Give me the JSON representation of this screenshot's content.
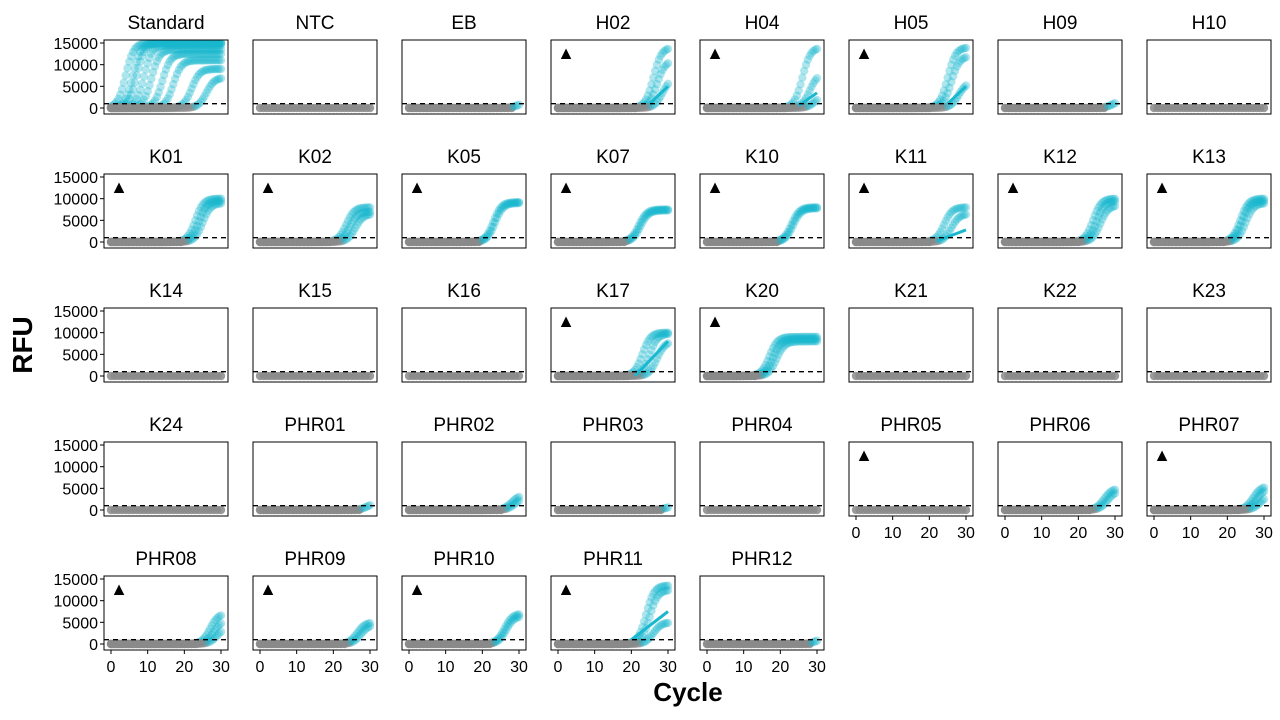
{
  "chart_data": {
    "type": "scatter",
    "xlabel": "Cycle",
    "ylabel": "RFU",
    "xlim": [
      0,
      30
    ],
    "ylim": [
      0,
      15000
    ],
    "x_ticks": [
      "0",
      "10",
      "20",
      "30"
    ],
    "y_ticks": [
      "0",
      "5000",
      "10000",
      "15000"
    ],
    "threshold": 1000,
    "marker_symbol": "▲",
    "grid": false,
    "legend": "none",
    "colors": {
      "amplified": "#1ab8cf",
      "background": "#8a8a8a",
      "threshold": "#000000"
    },
    "panels": [
      {
        "name": "Standard",
        "marked": false,
        "curves": [
          {
            "ct": 4,
            "max": 15000
          },
          {
            "ct": 6,
            "max": 15000
          },
          {
            "ct": 7,
            "max": 15000
          },
          {
            "ct": 9,
            "max": 14500
          },
          {
            "ct": 11,
            "max": 13500
          },
          {
            "ct": 14,
            "max": 12500
          },
          {
            "ct": 17,
            "max": 11000
          },
          {
            "ct": 22,
            "max": 9000
          },
          {
            "ct": 26,
            "max": 7000
          }
        ],
        "fit": null
      },
      {
        "name": "NTC",
        "marked": false,
        "curves": [],
        "fit": null
      },
      {
        "name": "EB",
        "marked": false,
        "curves": [
          {
            "ct": 30,
            "max": 1500
          }
        ],
        "fit": null
      },
      {
        "name": "H02",
        "marked": true,
        "curves": [
          {
            "ct": 26,
            "max": 14000
          },
          {
            "ct": 27,
            "max": 11000
          },
          {
            "ct": 28.5,
            "max": 7000
          }
        ],
        "fit": [
          [
            25,
            1000
          ],
          [
            30,
            5000
          ]
        ]
      },
      {
        "name": "H04",
        "marked": true,
        "curves": [
          {
            "ct": 26,
            "max": 14000
          },
          {
            "ct": 28,
            "max": 8000
          },
          {
            "ct": 29.5,
            "max": 3000
          }
        ],
        "fit": [
          [
            25,
            500
          ],
          [
            30,
            3500
          ]
        ]
      },
      {
        "name": "H05",
        "marked": true,
        "curves": [
          {
            "ct": 25,
            "max": 14000
          },
          {
            "ct": 26,
            "max": 12000
          },
          {
            "ct": 28,
            "max": 6000
          }
        ],
        "fit": [
          [
            25,
            1000
          ],
          [
            30,
            5000
          ]
        ]
      },
      {
        "name": "H09",
        "marked": false,
        "curves": [
          {
            "ct": 29.5,
            "max": 1800
          }
        ],
        "fit": null
      },
      {
        "name": "H10",
        "marked": false,
        "curves": [],
        "fit": null
      },
      {
        "name": "K01",
        "marked": true,
        "curves": [
          {
            "ct": 23,
            "max": 10000
          },
          {
            "ct": 24,
            "max": 9500
          },
          {
            "ct": 25,
            "max": 9000
          }
        ],
        "fit": null
      },
      {
        "name": "K02",
        "marked": true,
        "curves": [
          {
            "ct": 23.5,
            "max": 8000
          },
          {
            "ct": 24.5,
            "max": 7000
          },
          {
            "ct": 26,
            "max": 6500
          }
        ],
        "fit": null
      },
      {
        "name": "K05",
        "marked": true,
        "curves": [
          {
            "ct": 23,
            "max": 9200
          },
          {
            "ct": 23.5,
            "max": 9000
          }
        ],
        "fit": null
      },
      {
        "name": "K07",
        "marked": true,
        "curves": [
          {
            "ct": 22,
            "max": 7500
          },
          {
            "ct": 22.5,
            "max": 7300
          }
        ],
        "fit": null
      },
      {
        "name": "K10",
        "marked": true,
        "curves": [
          {
            "ct": 23,
            "max": 8000
          },
          {
            "ct": 23.5,
            "max": 7800
          }
        ],
        "fit": null
      },
      {
        "name": "K11",
        "marked": true,
        "curves": [
          {
            "ct": 24,
            "max": 8000
          },
          {
            "ct": 26,
            "max": 6500
          }
        ],
        "fit": [
          [
            22,
            200
          ],
          [
            30,
            2800
          ]
        ]
      },
      {
        "name": "K12",
        "marked": true,
        "curves": [
          {
            "ct": 24,
            "max": 10000
          },
          {
            "ct": 25,
            "max": 9500
          },
          {
            "ct": 26,
            "max": 8500
          }
        ],
        "fit": null
      },
      {
        "name": "K13",
        "marked": true,
        "curves": [
          {
            "ct": 23.5,
            "max": 10000
          },
          {
            "ct": 24,
            "max": 9500
          },
          {
            "ct": 25,
            "max": 9000
          }
        ],
        "fit": null
      },
      {
        "name": "K14",
        "marked": false,
        "curves": [],
        "fit": null
      },
      {
        "name": "K15",
        "marked": false,
        "curves": [],
        "fit": null
      },
      {
        "name": "K16",
        "marked": false,
        "curves": [],
        "fit": null
      },
      {
        "name": "K17",
        "marked": true,
        "curves": [
          {
            "ct": 23,
            "max": 10000
          },
          {
            "ct": 25,
            "max": 9800
          },
          {
            "ct": 27,
            "max": 8000
          }
        ],
        "fit": [
          [
            21,
            0
          ],
          [
            30,
            8000
          ]
        ]
      },
      {
        "name": "K20",
        "marked": true,
        "curves": [
          {
            "ct": 17,
            "max": 9000
          },
          {
            "ct": 18,
            "max": 8500
          },
          {
            "ct": 19,
            "max": 8000
          }
        ],
        "fit": null
      },
      {
        "name": "K21",
        "marked": false,
        "curves": [],
        "fit": null
      },
      {
        "name": "K22",
        "marked": false,
        "curves": [],
        "fit": null
      },
      {
        "name": "K23",
        "marked": false,
        "curves": [],
        "fit": null
      },
      {
        "name": "K24",
        "marked": false,
        "curves": [],
        "fit": null
      },
      {
        "name": "PHR01",
        "marked": false,
        "curves": [
          {
            "ct": 29.5,
            "max": 1800
          }
        ],
        "fit": null
      },
      {
        "name": "PHR02",
        "marked": false,
        "curves": [
          {
            "ct": 28,
            "max": 3500
          },
          {
            "ct": 29,
            "max": 3000
          }
        ],
        "fit": null
      },
      {
        "name": "PHR03",
        "marked": false,
        "curves": [
          {
            "ct": 30,
            "max": 1200
          }
        ],
        "fit": null
      },
      {
        "name": "PHR04",
        "marked": false,
        "curves": [],
        "fit": null
      },
      {
        "name": "PHR05",
        "marked": true,
        "curves": [],
        "fit": null
      },
      {
        "name": "PHR06",
        "marked": false,
        "curves": [
          {
            "ct": 27,
            "max": 5000
          },
          {
            "ct": 28,
            "max": 4500
          }
        ],
        "fit": null
      },
      {
        "name": "PHR07",
        "marked": true,
        "curves": [
          {
            "ct": 27,
            "max": 5500
          },
          {
            "ct": 28,
            "max": 5000
          },
          {
            "ct": 29,
            "max": 3500
          }
        ],
        "fit": null
      },
      {
        "name": "PHR08",
        "marked": true,
        "curves": [
          {
            "ct": 27,
            "max": 7000
          },
          {
            "ct": 28,
            "max": 5500
          },
          {
            "ct": 29,
            "max": 4000
          }
        ],
        "fit": null
      },
      {
        "name": "PHR09",
        "marked": true,
        "curves": [
          {
            "ct": 26.5,
            "max": 5000
          },
          {
            "ct": 27.5,
            "max": 4500
          }
        ],
        "fit": null
      },
      {
        "name": "PHR10",
        "marked": true,
        "curves": [
          {
            "ct": 26,
            "max": 7000
          },
          {
            "ct": 26.5,
            "max": 6500
          }
        ],
        "fit": null
      },
      {
        "name": "PHR11",
        "marked": true,
        "curves": [
          {
            "ct": 24,
            "max": 13500
          },
          {
            "ct": 25,
            "max": 12500
          },
          {
            "ct": 26,
            "max": 5000
          }
        ],
        "fit": [
          [
            20,
            1000
          ],
          [
            30,
            7500
          ]
        ]
      },
      {
        "name": "PHR12",
        "marked": false,
        "curves": [
          {
            "ct": 30,
            "max": 1500
          }
        ],
        "fit": null
      }
    ]
  }
}
